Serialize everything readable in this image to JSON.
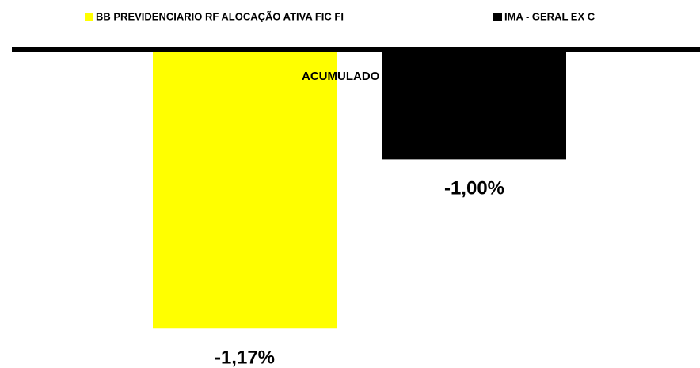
{
  "chart_data": {
    "type": "bar",
    "categories": [
      "ACUMULADO"
    ],
    "series": [
      {
        "name": "BB PREVIDENCIARIO RF ALOCAÇÃO ATIVA FIC FI",
        "color": "#ffff00",
        "values": [
          -1.17
        ],
        "value_labels": [
          "-1,17%"
        ]
      },
      {
        "name": "IMA - GERAL EX C",
        "color": "#000000",
        "values": [
          -1.0
        ],
        "value_labels": [
          "-1,00%"
        ]
      }
    ],
    "ylim": [
      -1.2,
      -0.89
    ],
    "legend": "top"
  }
}
